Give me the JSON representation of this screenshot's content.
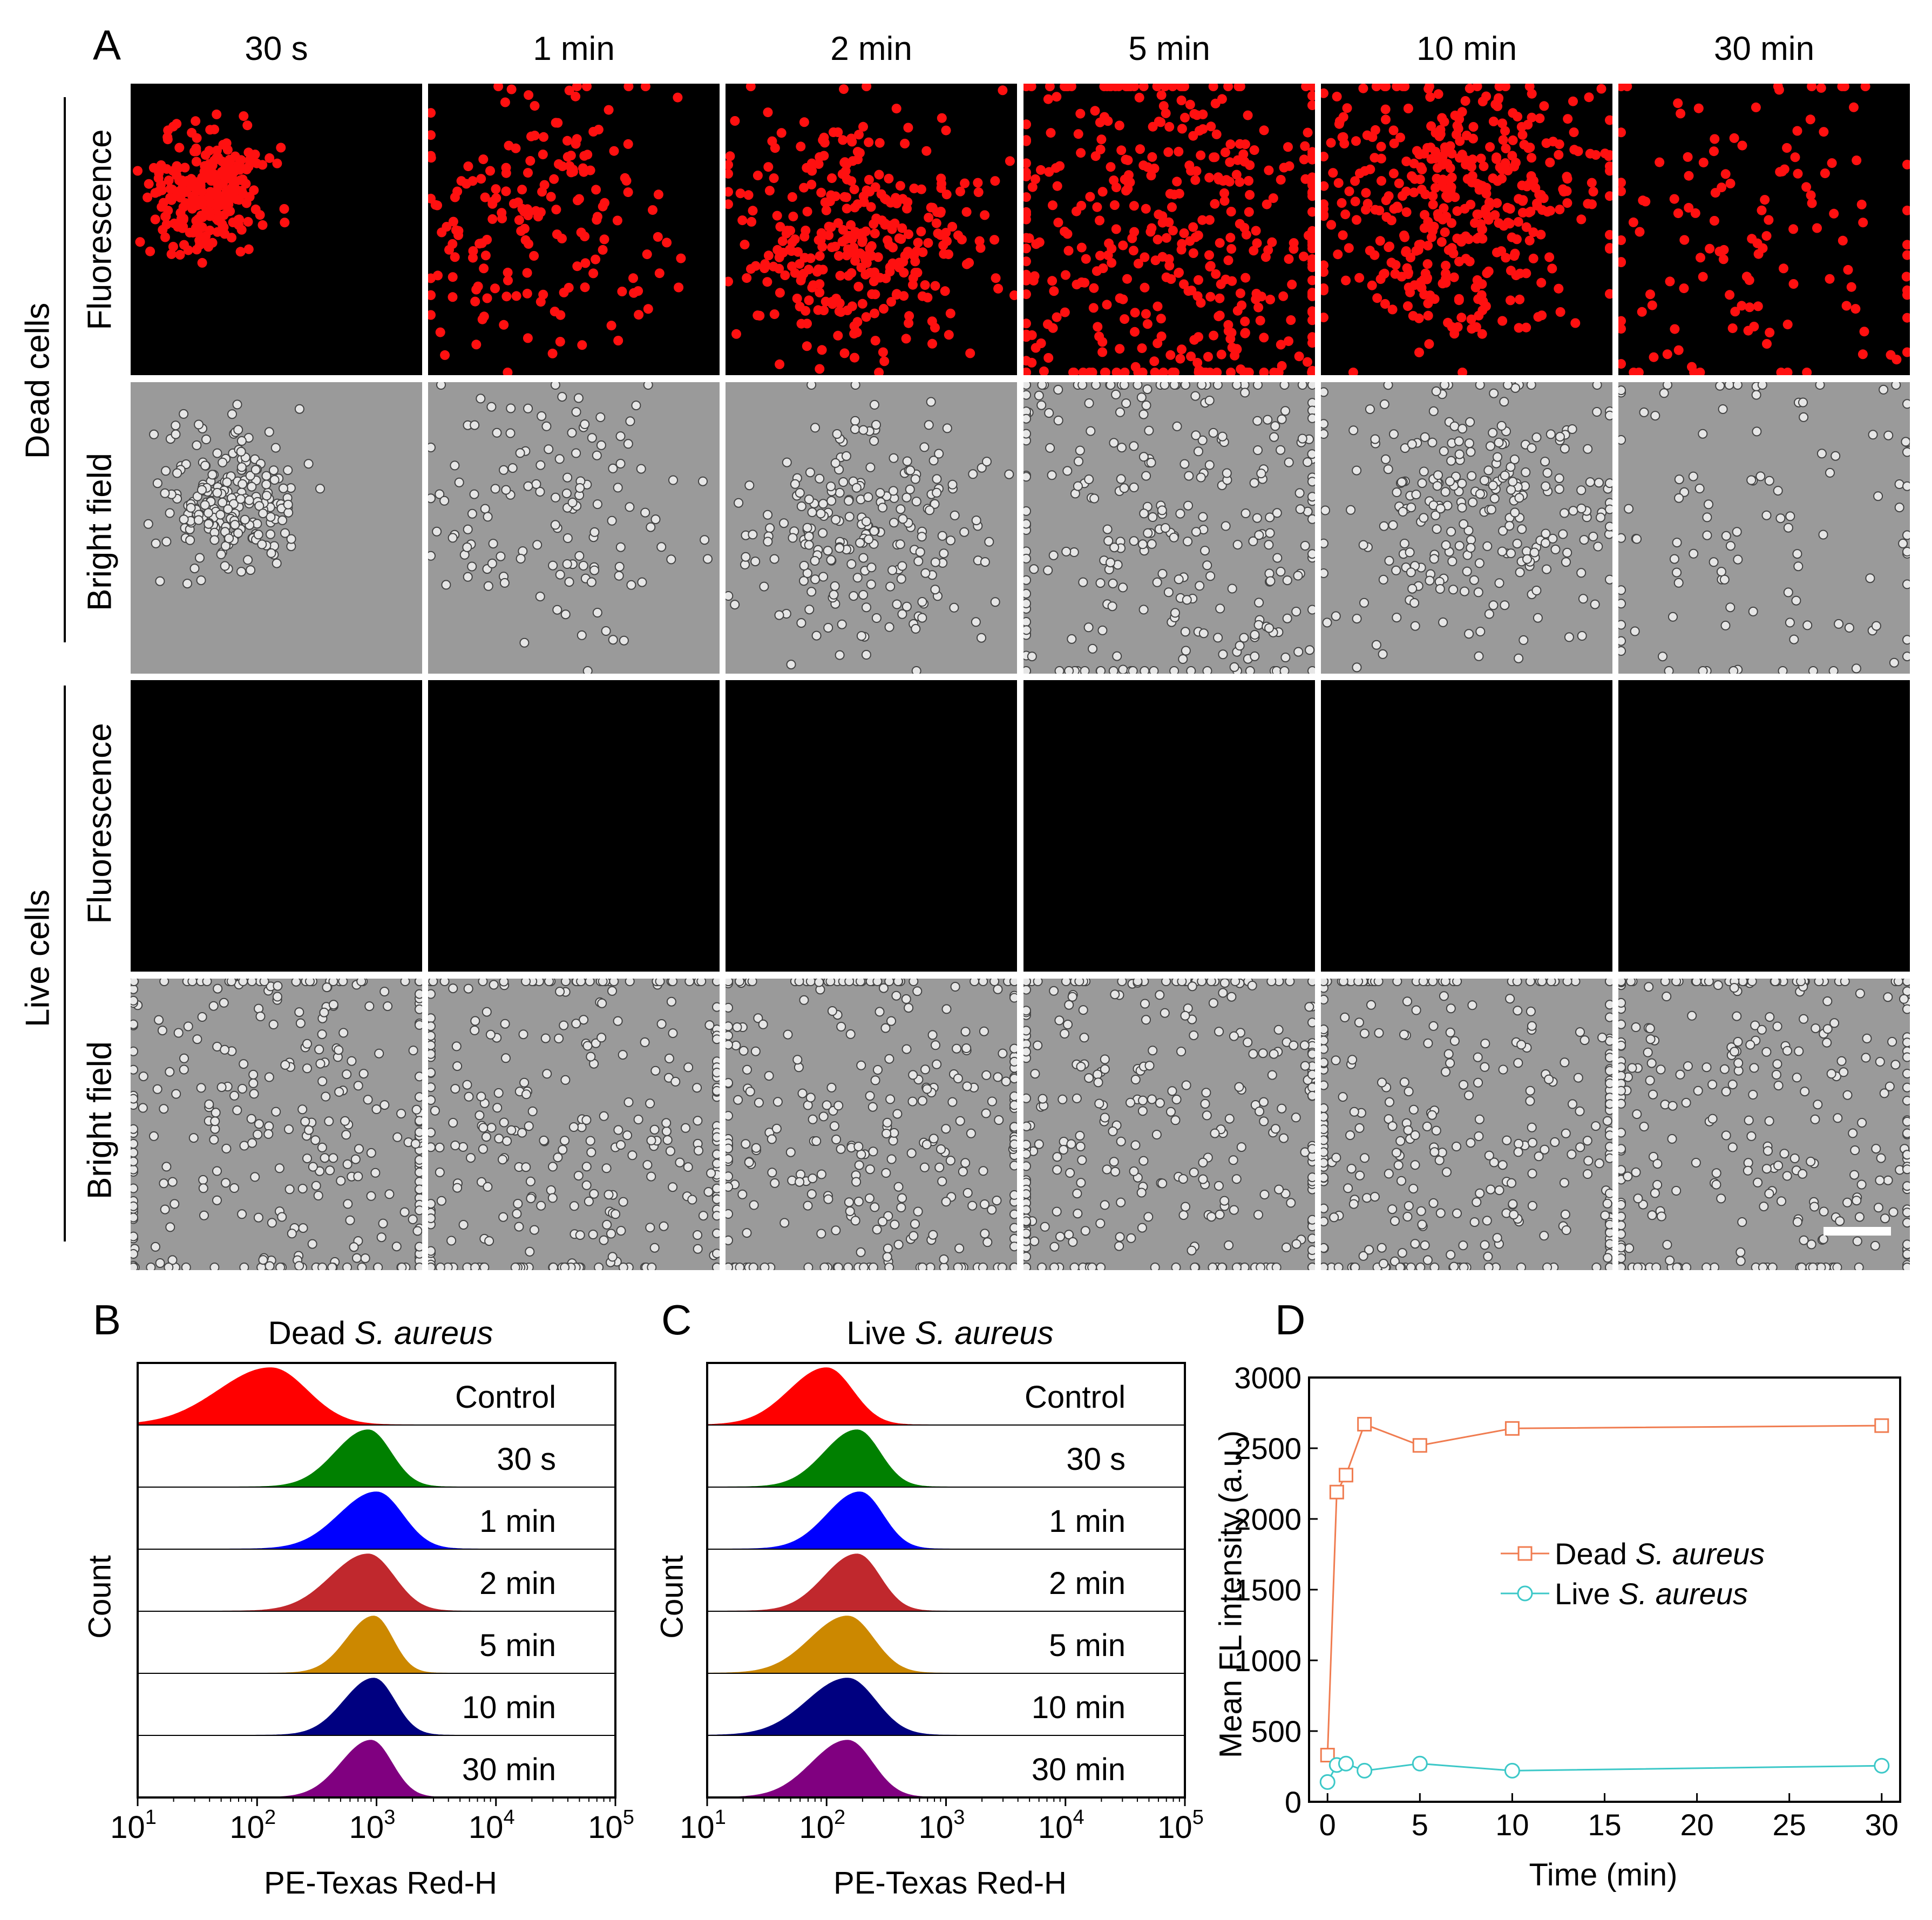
{
  "panel_letters": {
    "a": "A",
    "b": "B",
    "c": "C",
    "d": "D"
  },
  "panel_a": {
    "columns": [
      "30 s",
      "1 min",
      "2 min",
      "5 min",
      "10 min",
      "30 min"
    ],
    "groups": [
      {
        "label": "Dead cells",
        "rows": [
          "Fluorescence",
          "Bright field"
        ]
      },
      {
        "label": "Live cells",
        "rows": [
          "Fluorescence",
          "Bright field"
        ]
      }
    ]
  },
  "chart_data": [
    {
      "type": "area",
      "panel": "B",
      "title_prefix": "Dead ",
      "title_italic": "S. aureus",
      "xlabel": "PE-Texas Red-H",
      "ylabel": "Count",
      "xscale": "log",
      "xlim": [
        10,
        100000
      ],
      "xticks": [
        1,
        2,
        3,
        4,
        5
      ],
      "series": [
        {
          "name": "Control",
          "color": "#ff0000",
          "peak": 130,
          "spread": 0.35
        },
        {
          "name": "30 s",
          "color": "#008000",
          "peak": 850,
          "spread": 0.22
        },
        {
          "name": "1 min",
          "color": "#0000ff",
          "peak": 1000,
          "spread": 0.25
        },
        {
          "name": "2 min",
          "color": "#c0282d",
          "peak": 850,
          "spread": 0.25
        },
        {
          "name": "5 min",
          "color": "#cc8800",
          "peak": 950,
          "spread": 0.18
        },
        {
          "name": "10 min",
          "color": "#000080",
          "peak": 950,
          "spread": 0.2
        },
        {
          "name": "30 min",
          "color": "#800080",
          "peak": 900,
          "spread": 0.2
        }
      ]
    },
    {
      "type": "area",
      "panel": "C",
      "title_prefix": "Live ",
      "title_italic": "S. aureus",
      "xlabel": "PE-Texas Red-H",
      "ylabel": "Count",
      "xscale": "log",
      "xlim": [
        10,
        100000
      ],
      "xticks": [
        1,
        2,
        3,
        4,
        5
      ],
      "series": [
        {
          "name": "Control",
          "color": "#ff0000",
          "peak": 100,
          "spread": 0.25
        },
        {
          "name": "30 s",
          "color": "#008000",
          "peak": 180,
          "spread": 0.22
        },
        {
          "name": "1 min",
          "color": "#0000ff",
          "peak": 190,
          "spread": 0.22
        },
        {
          "name": "2 min",
          "color": "#c0282d",
          "peak": 180,
          "spread": 0.22
        },
        {
          "name": "5 min",
          "color": "#cc8800",
          "peak": 150,
          "spread": 0.25
        },
        {
          "name": "10 min",
          "color": "#000080",
          "peak": 150,
          "spread": 0.27
        },
        {
          "name": "30 min",
          "color": "#800080",
          "peak": 150,
          "spread": 0.24
        }
      ]
    },
    {
      "type": "line",
      "panel": "D",
      "xlabel": "Time (min)",
      "ylabel": "Mean FL intensity (a.u.)",
      "xlim": [
        -1,
        31
      ],
      "ylim": [
        0,
        3000
      ],
      "xticks": [
        0,
        5,
        10,
        15,
        20,
        25,
        30
      ],
      "yticks": [
        0,
        500,
        1000,
        1500,
        2000,
        2500,
        3000
      ],
      "series": [
        {
          "name_prefix": "Dead ",
          "name_italic": "S. aureus",
          "color": "#f07c50",
          "marker": "square",
          "x": [
            0,
            0.5,
            1,
            2,
            5,
            10,
            30
          ],
          "y": [
            330,
            2190,
            2310,
            2670,
            2520,
            2640,
            2660
          ]
        },
        {
          "name_prefix": "Live ",
          "name_italic": "S. aureus",
          "color": "#3cc8c8",
          "marker": "circle",
          "x": [
            0,
            0.5,
            1,
            2,
            5,
            10,
            30
          ],
          "y": [
            140,
            260,
            270,
            220,
            270,
            220,
            255
          ]
        }
      ]
    }
  ]
}
